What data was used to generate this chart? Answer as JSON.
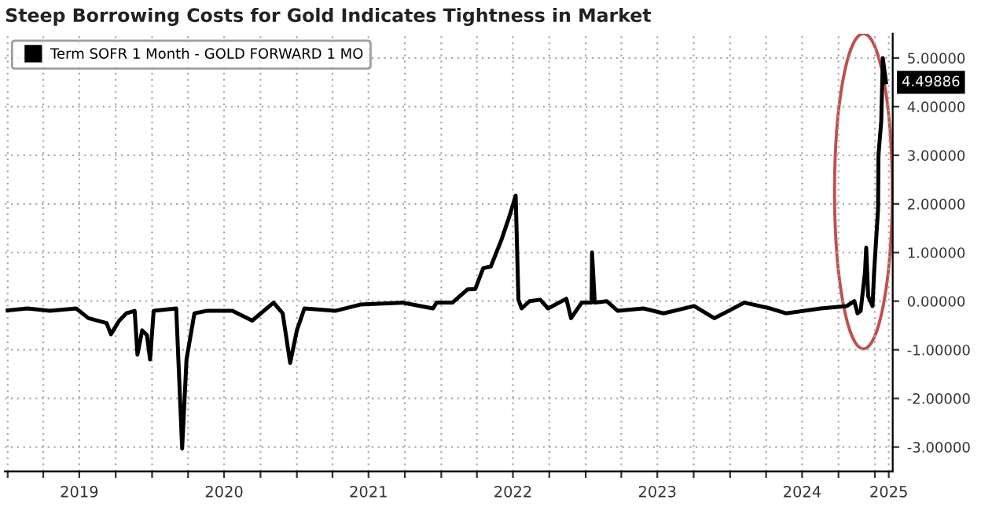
{
  "chart_data": {
    "type": "line",
    "title": "Steep Borrowing Costs for Gold Indicates Tightness in Market",
    "x": [
      "2019-01-01",
      "2019-02-20",
      "2019-04-18",
      "2019-06-23",
      "2019-07-24",
      "2019-09-08",
      "2019-09-19",
      "2019-10-10",
      "2019-10-28",
      "2019-11-18",
      "2019-11-25",
      "2019-12-07",
      "2019-12-19",
      "2019-12-27",
      "2020-01-05",
      "2020-03-02",
      "2020-03-17",
      "2020-03-28",
      "2020-04-17",
      "2020-05-18",
      "2020-07-22",
      "2020-09-10",
      "2020-11-03",
      "2020-11-26",
      "2020-12-15",
      "2021-01-01",
      "2021-01-20",
      "2021-04-08",
      "2021-06-10",
      "2021-09-24",
      "2021-12-11",
      "2021-12-20",
      "2022-01-29",
      "2022-03-08",
      "2022-03-28",
      "2022-04-17",
      "2022-05-06",
      "2022-06-02",
      "2022-06-22",
      "2022-07-08",
      "2022-07-15",
      "2022-07-23",
      "2022-08-12",
      "2022-09-08",
      "2022-09-28",
      "2022-11-13",
      "2022-11-25",
      "2022-12-22",
      "2023-01-16",
      "2023-01-17",
      "2023-01-24",
      "2023-02-23",
      "2023-03-23",
      "2023-05-27",
      "2023-07-17",
      "2023-10-02",
      "2023-11-22",
      "2023-12-28",
      "2024-02-06",
      "2024-04-12",
      "2024-05-21",
      "2024-08-17",
      "2024-10-22",
      "2024-11-10",
      "2024-11-18",
      "2024-11-26",
      "2024-12-07",
      "2024-12-10",
      "2024-12-15",
      "2024-12-26",
      "2024-12-30",
      "2025-01-09",
      "2025-01-10",
      "2025-01-17",
      "2025-01-21",
      "2025-01-29"
    ],
    "series": [
      {
        "name": "Term SOFR 1 Month - GOLD FORWARD 1 MO",
        "color": "#000000",
        "values": [
          -0.19,
          -0.15,
          -0.2,
          -0.15,
          -0.35,
          -0.45,
          -0.68,
          -0.4,
          -0.25,
          -0.2,
          -1.1,
          -0.6,
          -0.7,
          -1.2,
          -0.2,
          -0.15,
          -3.03,
          -1.2,
          -0.25,
          -0.2,
          -0.2,
          -0.4,
          -0.03,
          -0.25,
          -1.27,
          -0.6,
          -0.15,
          -0.2,
          -0.07,
          -0.03,
          -0.15,
          -0.03,
          -0.03,
          0.24,
          0.25,
          0.68,
          0.71,
          1.26,
          1.74,
          2.17,
          0.03,
          -0.15,
          0.0,
          0.03,
          -0.15,
          0.05,
          -0.35,
          -0.03,
          -0.03,
          1.0,
          -0.03,
          0.0,
          -0.2,
          -0.15,
          -0.25,
          -0.1,
          -0.35,
          -0.2,
          -0.03,
          -0.15,
          -0.25,
          -0.15,
          -0.1,
          0.0,
          -0.25,
          -0.2,
          0.6,
          1.1,
          0.1,
          -0.1,
          0.6,
          1.9,
          3.0,
          3.7,
          5.0,
          4.49886
        ]
      }
    ],
    "xlim": [
      "2018-12-25",
      "2025-02-15"
    ],
    "xticks": [
      {
        "value": "2019-01-01",
        "label": null
      },
      {
        "value": "2019-04-01",
        "label": null
      },
      {
        "value": "2019-07-01",
        "label": "2019"
      },
      {
        "value": "2019-10-01",
        "label": null
      },
      {
        "value": "2020-01-01",
        "label": null
      },
      {
        "value": "2020-04-01",
        "label": null
      },
      {
        "value": "2020-07-01",
        "label": "2020"
      },
      {
        "value": "2020-10-01",
        "label": null
      },
      {
        "value": "2021-01-01",
        "label": null
      },
      {
        "value": "2021-04-01",
        "label": null
      },
      {
        "value": "2021-07-01",
        "label": "2021"
      },
      {
        "value": "2021-10-01",
        "label": null
      },
      {
        "value": "2022-01-01",
        "label": null
      },
      {
        "value": "2022-04-01",
        "label": null
      },
      {
        "value": "2022-07-01",
        "label": "2022"
      },
      {
        "value": "2022-10-01",
        "label": null
      },
      {
        "value": "2023-01-01",
        "label": null
      },
      {
        "value": "2023-04-01",
        "label": null
      },
      {
        "value": "2023-07-01",
        "label": "2023"
      },
      {
        "value": "2023-10-01",
        "label": null
      },
      {
        "value": "2024-01-01",
        "label": null
      },
      {
        "value": "2024-04-01",
        "label": null
      },
      {
        "value": "2024-07-01",
        "label": "2024"
      },
      {
        "value": "2024-10-01",
        "label": null
      },
      {
        "value": "2025-01-01",
        "label": null
      },
      {
        "value": "2025-02-05",
        "label": "2025"
      }
    ],
    "ylim": [
      -3.5,
      5.5
    ],
    "yticks": [
      {
        "value": -3,
        "label": "-3.00000"
      },
      {
        "value": -2,
        "label": "-2.00000"
      },
      {
        "value": -1,
        "label": "-1.00000"
      },
      {
        "value": 0,
        "label": "0.00000"
      },
      {
        "value": 1,
        "label": "1.00000"
      },
      {
        "value": 2,
        "label": "2.00000"
      },
      {
        "value": 3,
        "label": "3.00000"
      },
      {
        "value": 4,
        "label": "4.00000"
      },
      {
        "value": 5,
        "label": "5.00000"
      }
    ],
    "annotations": [
      {
        "text": "4.49886",
        "x": "2025-01-29",
        "y": 4.49886
      }
    ],
    "grid": true,
    "legend": "top left",
    "line_style": "solid",
    "marker": "none"
  }
}
